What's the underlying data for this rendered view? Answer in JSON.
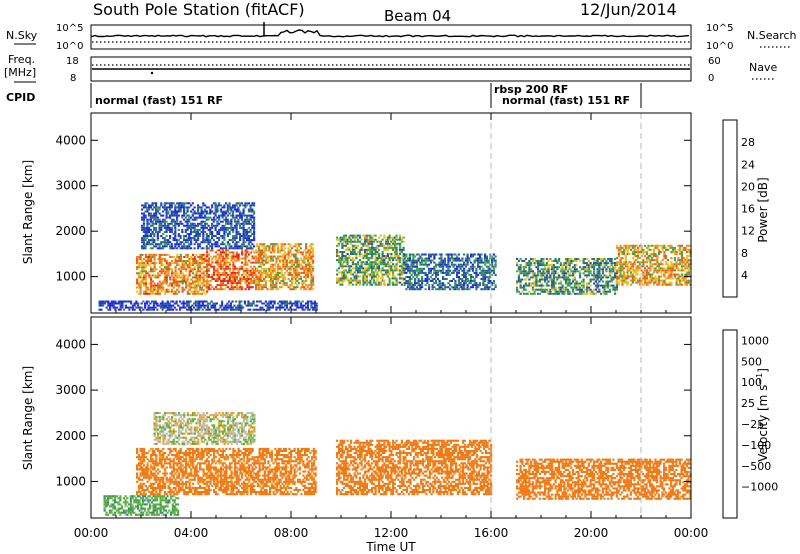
{
  "header": {
    "station_title": "South Pole Station (fitACF)",
    "beam": "Beam 04",
    "date": "12/Jun/2014"
  },
  "strip_panels": {
    "nsky_label": "N.Sky",
    "nsky_ticks": [
      "10^5",
      "10^0"
    ],
    "nsearch_label": "N.Search",
    "nsearch_ticks": [
      "10^5",
      "10^0"
    ],
    "freq_label_line1": "Freq.",
    "freq_label_line2": "[MHz]",
    "freq_ticks": [
      "18",
      "8"
    ],
    "nave_label": "Nave",
    "nave_ticks": [
      "60",
      "0"
    ],
    "cpid_label": "CPID",
    "cpid_segments": [
      {
        "label": "normal (fast) 151 RF",
        "start_hour": 0,
        "end_hour": 16
      },
      {
        "label": "rbsp 200 RF",
        "start_hour": 16,
        "end_hour": 22
      },
      {
        "label": "normal (fast) 151 RF",
        "start_hour": 16,
        "end_hour": 22
      }
    ]
  },
  "colors": {
    "power_scale": [
      "#1e28e6",
      "#2a4bb5",
      "#2e7a6e",
      "#3ba84a",
      "#e8c21e",
      "#f08a1e",
      "#f05a14",
      "#e82814"
    ],
    "velocity_scale": [
      "#e81414",
      "#f04a14",
      "#f07a14",
      "#f0a01e",
      "#bdbdbd",
      "#5ab43c",
      "#3c8c6e",
      "#2a5fa5",
      "#1e3cc8"
    ]
  },
  "chart_data": [
    {
      "type": "heatmap",
      "title": "Power",
      "xlabel": "Time UT",
      "ylabel": "Slant Range [km]",
      "x_ticks": [
        "00:00",
        "04:00",
        "08:00",
        "12:00",
        "16:00",
        "20:00",
        "00:00"
      ],
      "xlim_hours": [
        0,
        24
      ],
      "y_ticks": [
        "1000",
        "2000",
        "3000",
        "4000"
      ],
      "ylim_km": [
        200,
        4600
      ],
      "colorbar_label": "Power [dB]",
      "colorbar_ticks": [
        "4",
        "8",
        "12",
        "16",
        "20",
        "24",
        "28"
      ],
      "colorbar_range": [
        0,
        32
      ],
      "regions": [
        {
          "t0": 1.8,
          "t1": 4.6,
          "r0": 600,
          "r1": 1500,
          "value": 22
        },
        {
          "t0": 4.6,
          "t1": 6.6,
          "r0": 700,
          "r1": 1600,
          "value": 25
        },
        {
          "t0": 6.6,
          "t1": 8.9,
          "r0": 700,
          "r1": 1700,
          "value": 21
        },
        {
          "t0": 9.8,
          "t1": 12.5,
          "r0": 800,
          "r1": 1900,
          "value": 14
        },
        {
          "t0": 12.5,
          "t1": 16.2,
          "r0": 700,
          "r1": 1500,
          "value": 8
        },
        {
          "t0": 17.0,
          "t1": 21.0,
          "r0": 600,
          "r1": 1400,
          "value": 12
        },
        {
          "t0": 21.0,
          "t1": 24.0,
          "r0": 800,
          "r1": 1700,
          "value": 20
        },
        {
          "t0": 2.0,
          "t1": 6.5,
          "r0": 1600,
          "r1": 2600,
          "value": 6
        },
        {
          "t0": 0.3,
          "t1": 9.0,
          "r0": 250,
          "r1": 450,
          "value": 4
        }
      ]
    },
    {
      "type": "heatmap",
      "title": "Velocity",
      "xlabel": "Time UT",
      "ylabel": "Slant Range [km]",
      "x_ticks": [
        "00:00",
        "04:00",
        "08:00",
        "12:00",
        "16:00",
        "20:00",
        "00:00"
      ],
      "xlim_hours": [
        0,
        24
      ],
      "y_ticks": [
        "1000",
        "2000",
        "3000",
        "4000"
      ],
      "ylim_km": [
        200,
        4600
      ],
      "colorbar_label": "Velocity [m s^-1]",
      "colorbar_ticks": [
        "1000",
        "500",
        "100",
        "25",
        "−25",
        "−100",
        "−500",
        "−1000"
      ],
      "regions": [
        {
          "t0": 1.8,
          "t1": 9.0,
          "r0": 700,
          "r1": 1700,
          "value": -150
        },
        {
          "t0": 2.5,
          "t1": 6.5,
          "r0": 1800,
          "r1": 2500,
          "value": 0
        },
        {
          "t0": 9.8,
          "t1": 16.0,
          "r0": 700,
          "r1": 1900,
          "value": -200
        },
        {
          "t0": 17.0,
          "t1": 24.0,
          "r0": 600,
          "r1": 1500,
          "value": -250
        },
        {
          "t0": 0.5,
          "t1": 3.5,
          "r0": 250,
          "r1": 700,
          "value": 80
        }
      ]
    }
  ]
}
